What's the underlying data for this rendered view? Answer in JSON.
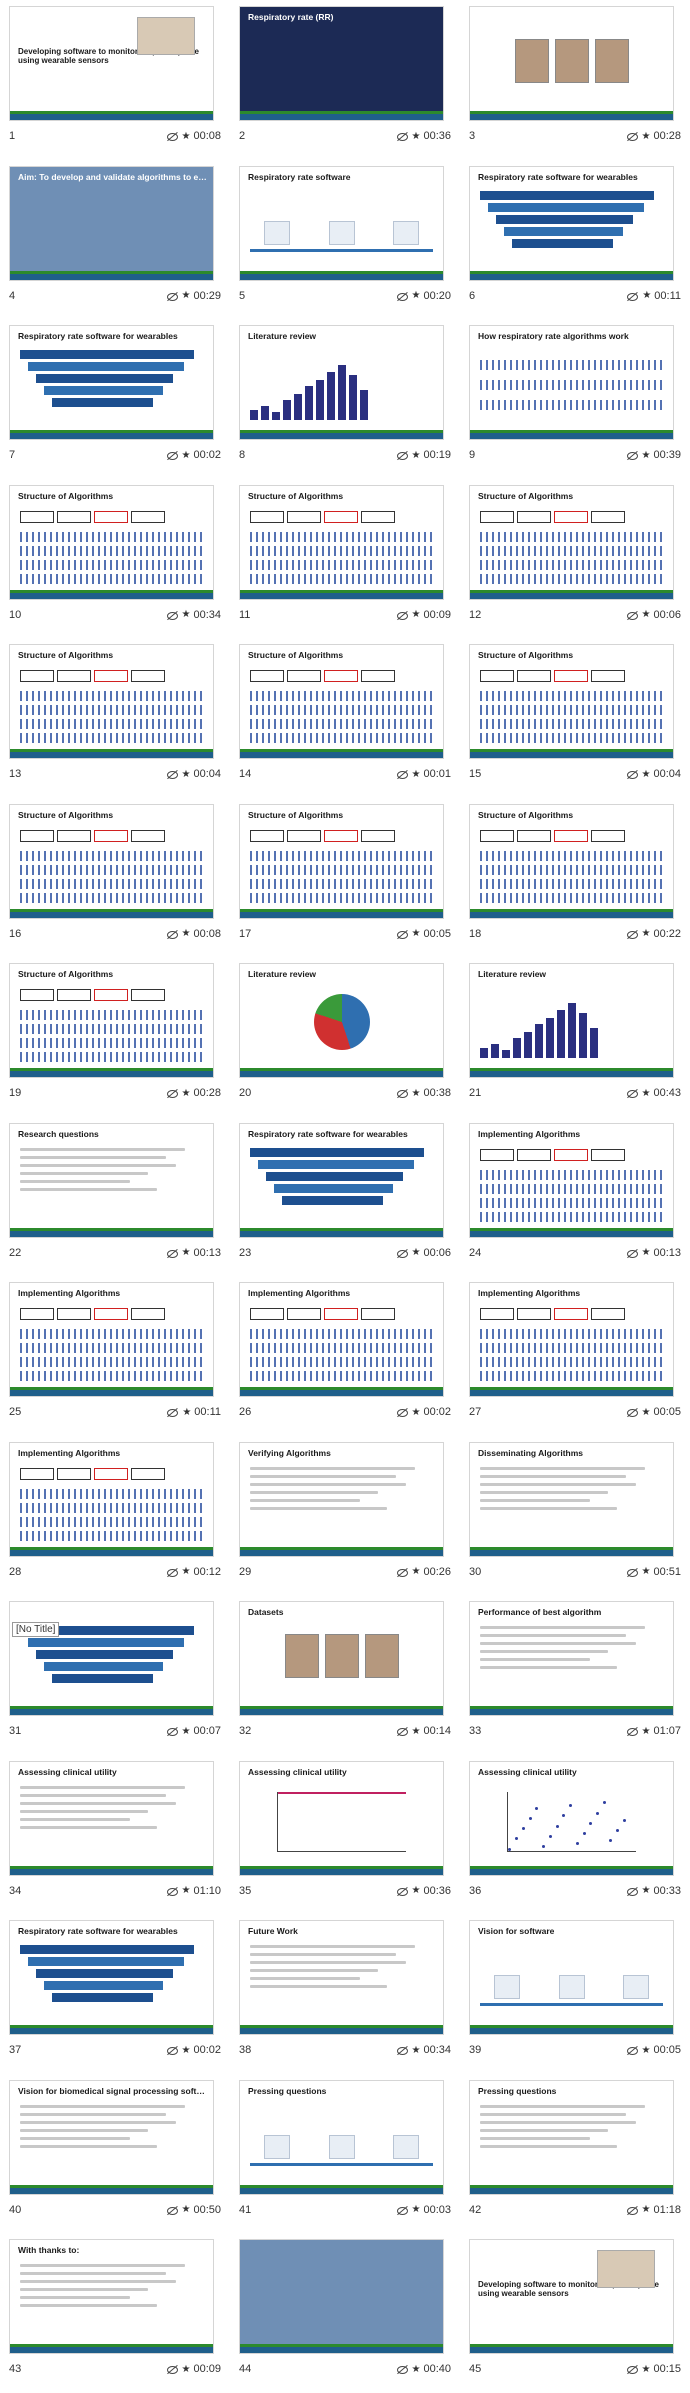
{
  "slides": [
    {
      "num": "1",
      "duration": "00:08",
      "title": "Developing software to monitor respiratory rate using wearable sensors",
      "style": "title"
    },
    {
      "num": "2",
      "duration": "00:36",
      "title": "Respiratory rate (RR)",
      "style": "dark"
    },
    {
      "num": "3",
      "duration": "00:28",
      "title": "",
      "style": "photo-people"
    },
    {
      "num": "4",
      "duration": "00:29",
      "title": "Aim: To develop and validate algorithms to estimate respiratory rate from signals acquired by wearables",
      "style": "photo"
    },
    {
      "num": "5",
      "duration": "00:20",
      "title": "Respiratory rate software",
      "style": "timeline"
    },
    {
      "num": "6",
      "duration": "00:11",
      "title": "Respiratory rate software for wearables",
      "style": "staircase"
    },
    {
      "num": "7",
      "duration": "00:02",
      "title": "Respiratory rate software for wearables",
      "style": "staircase"
    },
    {
      "num": "8",
      "duration": "00:19",
      "title": "Literature review",
      "style": "bars"
    },
    {
      "num": "9",
      "duration": "00:39",
      "title": "How respiratory rate algorithms work",
      "style": "waves"
    },
    {
      "num": "10",
      "duration": "00:34",
      "title": "Structure of Algorithms",
      "style": "algo"
    },
    {
      "num": "11",
      "duration": "00:09",
      "title": "Structure of Algorithms",
      "style": "algo"
    },
    {
      "num": "12",
      "duration": "00:06",
      "title": "Structure of Algorithms",
      "style": "algo"
    },
    {
      "num": "13",
      "duration": "00:04",
      "title": "Structure of Algorithms",
      "style": "algo"
    },
    {
      "num": "14",
      "duration": "00:01",
      "title": "Structure of Algorithms",
      "style": "algo"
    },
    {
      "num": "15",
      "duration": "00:04",
      "title": "Structure of Algorithms",
      "style": "algo"
    },
    {
      "num": "16",
      "duration": "00:08",
      "title": "Structure of Algorithms",
      "style": "algo"
    },
    {
      "num": "17",
      "duration": "00:05",
      "title": "Structure of Algorithms",
      "style": "algo"
    },
    {
      "num": "18",
      "duration": "00:22",
      "title": "Structure of Algorithms",
      "style": "algo"
    },
    {
      "num": "19",
      "duration": "00:28",
      "title": "Structure of Algorithms",
      "style": "algo"
    },
    {
      "num": "20",
      "duration": "00:38",
      "title": "Literature review",
      "style": "pie"
    },
    {
      "num": "21",
      "duration": "00:43",
      "title": "Literature review",
      "style": "bars"
    },
    {
      "num": "22",
      "duration": "00:13",
      "title": "Research questions",
      "style": "text"
    },
    {
      "num": "23",
      "duration": "00:06",
      "title": "Respiratory rate software for wearables",
      "style": "staircase"
    },
    {
      "num": "24",
      "duration": "00:13",
      "title": "Implementing Algorithms",
      "style": "algo"
    },
    {
      "num": "25",
      "duration": "00:11",
      "title": "Implementing Algorithms",
      "style": "algo"
    },
    {
      "num": "26",
      "duration": "00:02",
      "title": "Implementing Algorithms",
      "style": "algo"
    },
    {
      "num": "27",
      "duration": "00:05",
      "title": "Implementing Algorithms",
      "style": "algo"
    },
    {
      "num": "28",
      "duration": "00:12",
      "title": "Implementing Algorithms",
      "style": "algo"
    },
    {
      "num": "29",
      "duration": "00:26",
      "title": "Verifying Algorithms",
      "style": "text"
    },
    {
      "num": "30",
      "duration": "00:51",
      "title": "Disseminating Algorithms",
      "style": "text"
    },
    {
      "num": "31",
      "duration": "00:07",
      "title": "[No Title]",
      "style": "staircase"
    },
    {
      "num": "32",
      "duration": "00:14",
      "title": "Datasets",
      "style": "photo-people"
    },
    {
      "num": "33",
      "duration": "01:07",
      "title": "Performance of best algorithm",
      "style": "text"
    },
    {
      "num": "34",
      "duration": "01:10",
      "title": "Assessing clinical utility",
      "style": "text"
    },
    {
      "num": "35",
      "duration": "00:36",
      "title": "Assessing clinical utility",
      "style": "curves"
    },
    {
      "num": "36",
      "duration": "00:33",
      "title": "Assessing clinical utility",
      "style": "scatter"
    },
    {
      "num": "37",
      "duration": "00:02",
      "title": "Respiratory rate software for wearables",
      "style": "staircase"
    },
    {
      "num": "38",
      "duration": "00:34",
      "title": "Future Work",
      "style": "text"
    },
    {
      "num": "39",
      "duration": "00:05",
      "title": "Vision for software",
      "style": "timeline"
    },
    {
      "num": "40",
      "duration": "00:50",
      "title": "Vision for biomedical signal processing software",
      "style": "text"
    },
    {
      "num": "41",
      "duration": "00:03",
      "title": "Pressing questions",
      "style": "timeline"
    },
    {
      "num": "42",
      "duration": "01:18",
      "title": "Pressing questions",
      "style": "text"
    },
    {
      "num": "43",
      "duration": "00:09",
      "title": "With thanks to:",
      "style": "text"
    },
    {
      "num": "44",
      "duration": "00:40",
      "title": "",
      "style": "photo"
    },
    {
      "num": "45",
      "duration": "00:15",
      "title": "Developing software to monitor respiratory rate using wearable sensors",
      "style": "title"
    }
  ],
  "colors": {
    "accent": "#1f5f8b",
    "green": "#2c8a2c",
    "red": "#d02020"
  }
}
